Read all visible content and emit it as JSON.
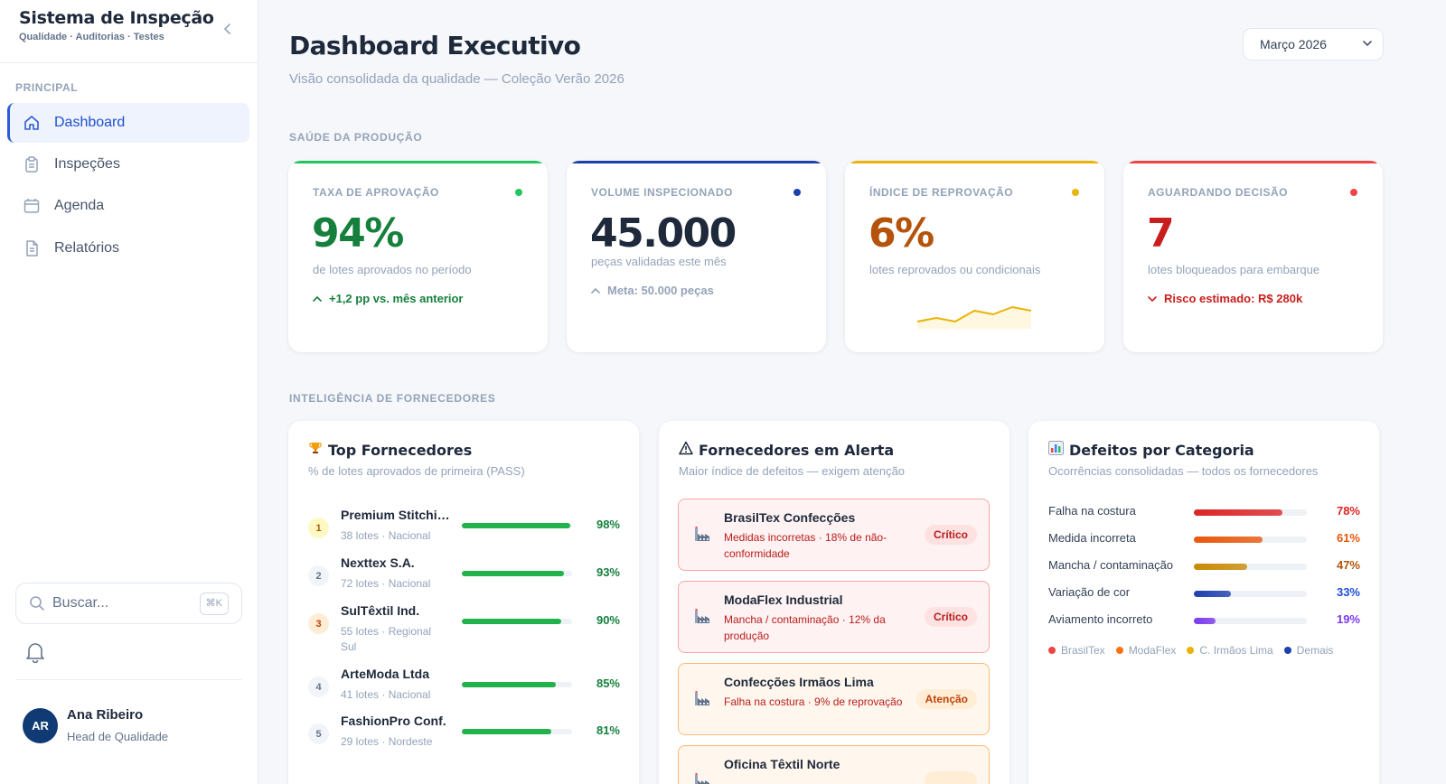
{
  "app": {
    "title": "Sistema de Inspeção",
    "subtitle": "Qualidade · Auditorias · Testes"
  },
  "sidebar": {
    "section_label": "PRINCIPAL",
    "items": [
      {
        "label": "Dashboard",
        "icon": "home-icon",
        "active": true
      },
      {
        "label": "Inspeções",
        "icon": "clipboard-icon",
        "active": false
      },
      {
        "label": "Agenda",
        "icon": "calendar-icon",
        "active": false
      },
      {
        "label": "Relatórios",
        "icon": "document-icon",
        "active": false
      }
    ],
    "search": {
      "placeholder": "Buscar...",
      "shortcut": "⌘K"
    },
    "user": {
      "initials": "AR",
      "name": "Ana Ribeiro",
      "role": "Head de Qualidade"
    }
  },
  "header": {
    "title": "Dashboard Executivo",
    "subtitle": "Visão consolidada da qualidade — Coleção Verão 2026",
    "month_select": "Março 2026"
  },
  "sections": {
    "production": "SAÚDE DA PRODUÇÃO",
    "suppliers": "INTELIGÊNCIA DE FORNECEDORES"
  },
  "kpis": [
    {
      "label": "TAXA DE APROVAÇÃO",
      "value": "94%",
      "desc": "de lotes aprovados no período",
      "trend": "+1,2 pp vs. mês anterior",
      "color": "#22c55e",
      "value_color": "#15803d",
      "trend_color": "#15803d"
    },
    {
      "label": "VOLUME INSPECIONADO",
      "value": "45.000",
      "desc": "peças validadas este mês",
      "trend": "Meta: 50.000 peças",
      "color": "#1e40af",
      "value_color": "#1e293b",
      "trend_color": "#94a3b8"
    },
    {
      "label": "ÍNDICE DE REPROVAÇÃO",
      "value": "6%",
      "desc": "lotes reprovados ou condicionais",
      "trend": "",
      "color": "#eab308",
      "value_color": "#b45309",
      "sparkline": [
        4,
        5,
        4,
        7,
        6,
        8,
        7
      ]
    },
    {
      "label": "AGUARDANDO DECISÃO",
      "value": "7",
      "desc": "lotes bloqueados para embarque",
      "trend": "Risco estimado: R$ 280k",
      "color": "#ef4444",
      "value_color": "#c81e1e",
      "trend_color": "#c81e1e"
    }
  ],
  "top_suppliers": {
    "title": "Top Fornecedores",
    "icon": "trophy-icon",
    "subtitle": "% de lotes aprovados de primeira (PASS)",
    "rows": [
      {
        "rank": "1",
        "name": "Premium Stitching Co.",
        "meta": "38 lotes · Nacional",
        "pct": "98%",
        "value": 98
      },
      {
        "rank": "2",
        "name": "Nexttex S.A.",
        "meta": "72 lotes · Nacional",
        "pct": "93%",
        "value": 93
      },
      {
        "rank": "3",
        "name": "SulTêxtil Ind.",
        "meta": "55 lotes · Regional Sul",
        "pct": "90%",
        "value": 90
      },
      {
        "rank": "4",
        "name": "ArteModa Ltda",
        "meta": "41 lotes · Nacional",
        "pct": "85%",
        "value": 85
      },
      {
        "rank": "5",
        "name": "FashionPro Conf.",
        "meta": "29 lotes · Nordeste",
        "pct": "81%",
        "value": 81
      }
    ]
  },
  "alert_suppliers": {
    "title": "Fornecedores em Alerta",
    "icon": "warning-icon",
    "subtitle": "Maior índice de defeitos — exigem atenção",
    "rows": [
      {
        "name": "BrasilTex Confecções",
        "desc": "Medidas incorretas · 18% de não-conformidade",
        "badge": "Crítico",
        "level": "critical"
      },
      {
        "name": "ModaFlex Industrial",
        "desc": "Mancha / contaminação · 12% da produção",
        "badge": "Crítico",
        "level": "critical"
      },
      {
        "name": "Confecções Irmãos Lima",
        "desc": "Falha na costura · 9% de reprovação",
        "badge": "Atenção",
        "level": "warning"
      },
      {
        "name": "Oficina Têxtil Norte",
        "desc": "",
        "badge": "",
        "level": "warning"
      }
    ]
  },
  "defects": {
    "title": "Defeitos por Categoria",
    "icon": "bar-chart-icon",
    "subtitle": "Ocorrências consolidadas — todos os fornecedores",
    "rows": [
      {
        "label": "Falha na costura",
        "pct": "78%",
        "value": 78,
        "color": "#dc2626",
        "text_color": "#dc2626"
      },
      {
        "label": "Medida incorreta",
        "pct": "61%",
        "value": 61,
        "color": "#ea580c",
        "text_color": "#ea580c"
      },
      {
        "label": "Mancha / contaminação",
        "pct": "47%",
        "value": 47,
        "color": "#ca8a04",
        "text_color": "#b45309"
      },
      {
        "label": "Variação de cor",
        "pct": "33%",
        "value": 33,
        "color": "#1e40af",
        "text_color": "#1d4ed8"
      },
      {
        "label": "Aviamento incorreto",
        "pct": "19%",
        "value": 19,
        "color": "#7c3aed",
        "text_color": "#7c3aed"
      }
    ],
    "legend": [
      {
        "label": "BrasilTex",
        "color": "#ef4444"
      },
      {
        "label": "ModaFlex",
        "color": "#f97316"
      },
      {
        "label": "C. Irmãos Lima",
        "color": "#eab308"
      },
      {
        "label": "Demais",
        "color": "#1e40af"
      }
    ]
  }
}
